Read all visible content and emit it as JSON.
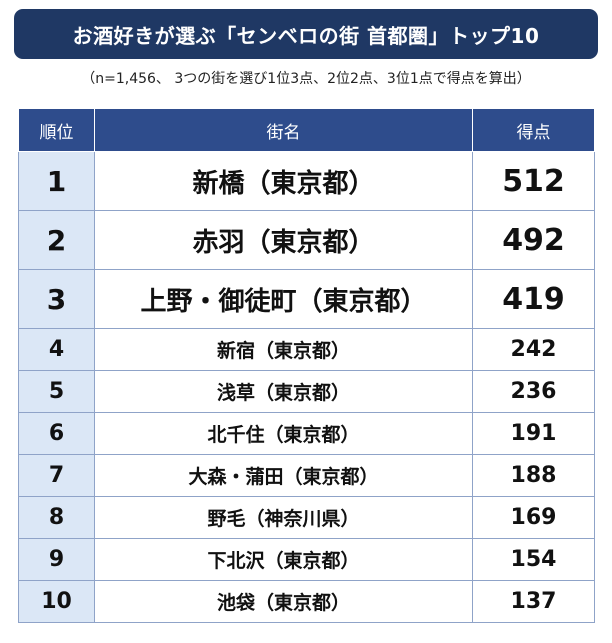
{
  "title": "お酒好きが選ぶ「センベロの街 首都圏」トップ10",
  "subtitle": "（n=1,456、 3つの街を選び1位3点、2位2点、3位1点で得点を算出）",
  "headers": {
    "rank": "順位",
    "name": "街名",
    "score": "得点"
  },
  "rows": [
    {
      "rank": "1",
      "name": "新橋（東京都）",
      "score": "512"
    },
    {
      "rank": "2",
      "name": "赤羽（東京都）",
      "score": "492"
    },
    {
      "rank": "3",
      "name": "上野・御徒町（東京都）",
      "score": "419"
    },
    {
      "rank": "4",
      "name": "新宿（東京都）",
      "score": "242"
    },
    {
      "rank": "5",
      "name": "浅草（東京都）",
      "score": "236"
    },
    {
      "rank": "6",
      "name": "北千住（東京都）",
      "score": "191"
    },
    {
      "rank": "7",
      "name": "大森・蒲田（東京都）",
      "score": "188"
    },
    {
      "rank": "8",
      "name": "野毛（神奈川県）",
      "score": "169"
    },
    {
      "rank": "9",
      "name": "下北沢（東京都）",
      "score": "154"
    },
    {
      "rank": "10",
      "name": "池袋（東京都）",
      "score": "137"
    }
  ]
}
